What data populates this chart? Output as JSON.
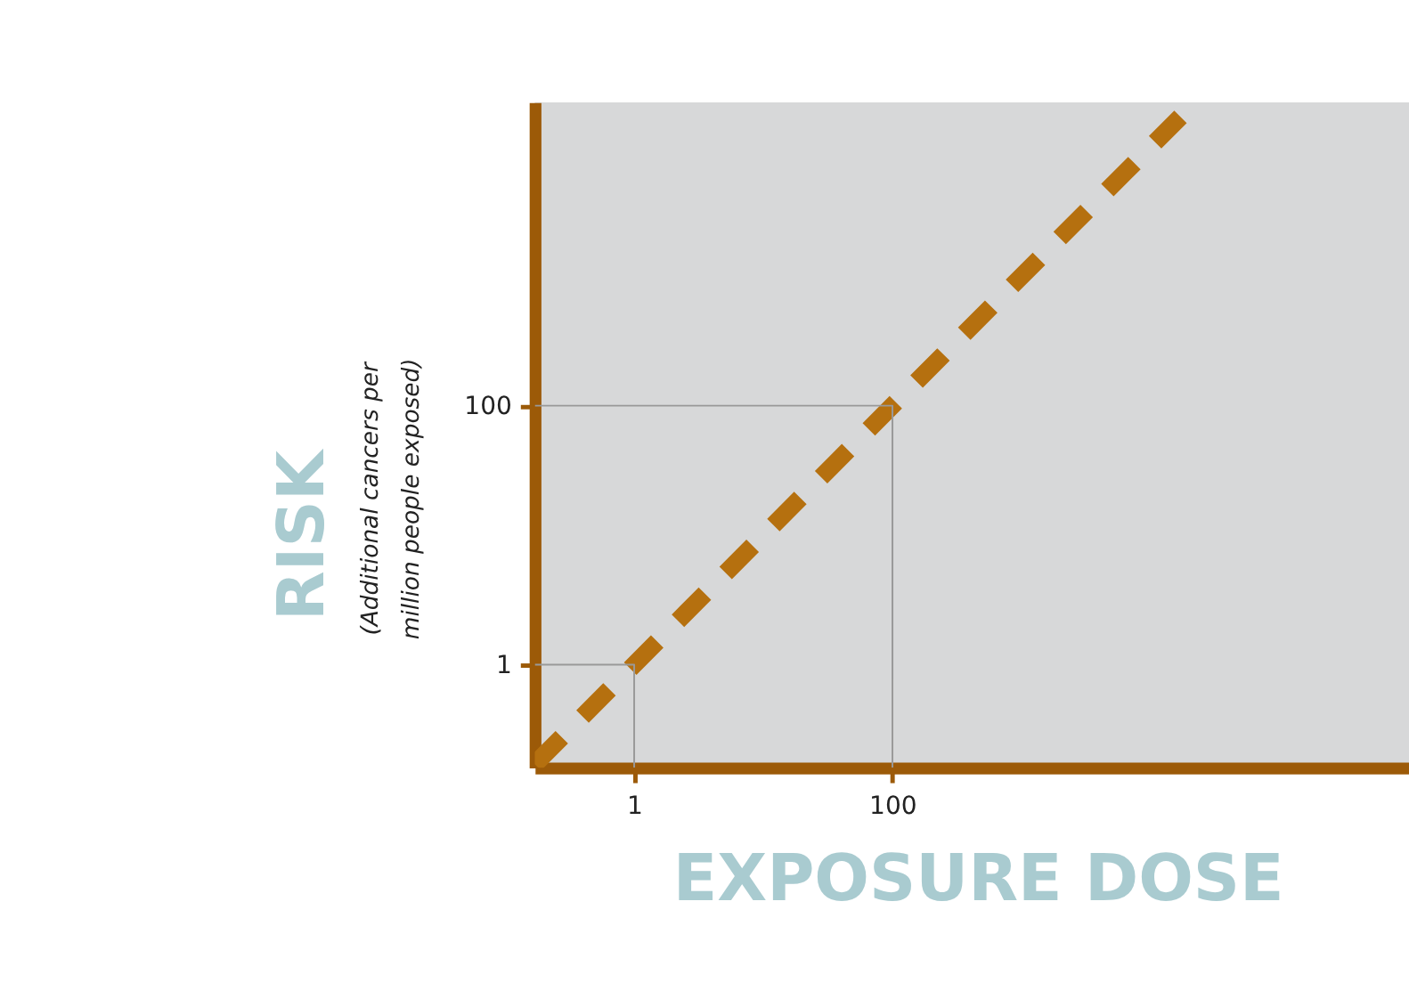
{
  "chart_data": {
    "type": "line",
    "xlabel": "EXPOSURE DOSE",
    "ylabel": "RISK",
    "annotations": [
      "(Additional cancers per million people exposed)"
    ],
    "log": "xy",
    "grid": false,
    "marker": "none",
    "xlim": [
      0.17,
      1000000
    ],
    "ylim": [
      0.16,
      22000
    ],
    "xticks": [
      1,
      100
    ],
    "yticks": [
      1,
      100
    ],
    "series": [
      {
        "color": "#b5700f",
        "line_style": "dashed",
        "x": [
          0.17,
          17000
        ],
        "values": [
          0.17,
          17000
        ]
      },
      {
        "color": "#999999",
        "line_style": "solid",
        "x": [
          0.17,
          1,
          1
        ],
        "values": [
          1,
          1,
          0.16
        ]
      },
      {
        "color": "#999999",
        "line_style": "solid",
        "x": [
          0.17,
          100,
          100
        ],
        "values": [
          100,
          100,
          0.16
        ]
      }
    ]
  }
}
